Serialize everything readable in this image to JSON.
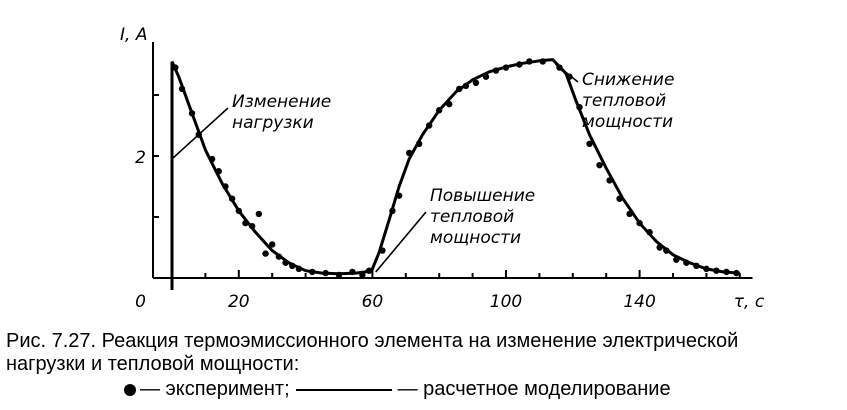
{
  "chart_data": {
    "type": "line",
    "ylabel": "I, A",
    "xlabel": "τ, с",
    "origin_label": "0",
    "xlim": [
      -5,
      172
    ],
    "ylim": [
      0,
      3.8
    ],
    "x_ticks": [
      20,
      60,
      100,
      140
    ],
    "x_tick_labels": [
      "20",
      "60",
      "100",
      "140"
    ],
    "y_ticks": [
      1,
      2,
      3
    ],
    "y_tick_labels": [
      "2"
    ],
    "series": [
      {
        "kind": "line",
        "values": [
          [
            0,
            3.55
          ],
          [
            2,
            3.3
          ],
          [
            5,
            2.85
          ],
          [
            10,
            2.1
          ],
          [
            15,
            1.55
          ],
          [
            20,
            1.1
          ],
          [
            25,
            0.75
          ],
          [
            30,
            0.45
          ],
          [
            35,
            0.25
          ],
          [
            40,
            0.12
          ],
          [
            45,
            0.08
          ],
          [
            50,
            0.07
          ],
          [
            55,
            0.08
          ],
          [
            58,
            0.1
          ],
          [
            60,
            0.15
          ],
          [
            62,
            0.42
          ],
          [
            65,
            0.95
          ],
          [
            68,
            1.5
          ],
          [
            71,
            1.95
          ],
          [
            75,
            2.35
          ],
          [
            80,
            2.75
          ],
          [
            85,
            3.05
          ],
          [
            90,
            3.25
          ],
          [
            95,
            3.38
          ],
          [
            100,
            3.46
          ],
          [
            105,
            3.52
          ],
          [
            110,
            3.56
          ],
          [
            114,
            3.58
          ],
          [
            118,
            3.35
          ],
          [
            121,
            2.9
          ],
          [
            125,
            2.35
          ],
          [
            130,
            1.8
          ],
          [
            135,
            1.3
          ],
          [
            140,
            0.9
          ],
          [
            145,
            0.6
          ],
          [
            150,
            0.38
          ],
          [
            155,
            0.25
          ],
          [
            160,
            0.15
          ],
          [
            165,
            0.1
          ],
          [
            170,
            0.08
          ]
        ]
      },
      {
        "kind": "scatter",
        "values": [
          [
            1,
            3.45
          ],
          [
            3,
            3.1
          ],
          [
            6,
            2.7
          ],
          [
            8,
            2.35
          ],
          [
            12,
            1.95
          ],
          [
            14,
            1.75
          ],
          [
            16,
            1.5
          ],
          [
            18,
            1.3
          ],
          [
            20,
            1.1
          ],
          [
            22,
            0.9
          ],
          [
            24,
            0.85
          ],
          [
            26,
            1.05
          ],
          [
            28,
            0.4
          ],
          [
            30,
            0.55
          ],
          [
            32,
            0.35
          ],
          [
            34,
            0.25
          ],
          [
            36,
            0.2
          ],
          [
            38,
            0.15
          ],
          [
            42,
            0.1
          ],
          [
            46,
            0.08
          ],
          [
            50,
            0.05
          ],
          [
            54,
            0.1
          ],
          [
            57,
            0.05
          ],
          [
            59,
            0.12
          ],
          [
            63,
            0.45
          ],
          [
            66,
            1.1
          ],
          [
            68,
            1.35
          ],
          [
            71,
            2.05
          ],
          [
            74,
            2.2
          ],
          [
            77,
            2.5
          ],
          [
            80,
            2.75
          ],
          [
            83,
            2.85
          ],
          [
            86,
            3.1
          ],
          [
            88,
            3.15
          ],
          [
            91,
            3.2
          ],
          [
            94,
            3.3
          ],
          [
            97,
            3.4
          ],
          [
            100,
            3.45
          ],
          [
            104,
            3.5
          ],
          [
            107,
            3.55
          ],
          [
            111,
            3.55
          ],
          [
            116,
            3.45
          ],
          [
            119,
            3.3
          ],
          [
            122,
            2.8
          ],
          [
            125,
            2.2
          ],
          [
            128,
            1.85
          ],
          [
            131,
            1.6
          ],
          [
            134,
            1.3
          ],
          [
            137,
            1.05
          ],
          [
            140,
            0.9
          ],
          [
            143,
            0.75
          ],
          [
            146,
            0.5
          ],
          [
            148,
            0.45
          ],
          [
            151,
            0.3
          ],
          [
            154,
            0.25
          ],
          [
            157,
            0.2
          ],
          [
            160,
            0.15
          ],
          [
            163,
            0.12
          ],
          [
            166,
            0.1
          ],
          [
            169,
            0.08
          ]
        ]
      }
    ],
    "annotations": [
      {
        "text_lines": [
          "Изменение",
          "нагрузки"
        ]
      },
      {
        "text_lines": [
          "Повышение",
          "тепловой",
          "мощности"
        ]
      },
      {
        "text_lines": [
          "Снижение",
          "тепловой",
          "мощности"
        ]
      }
    ]
  },
  "caption": {
    "line1": "Рис. 7.27. Реакция термоэмиссионного элемента на изменение электрической",
    "line2": "нагрузки и тепловой мощности:",
    "legend_points": "— эксперимент;",
    "legend_line": "— расчетное моделирование"
  }
}
